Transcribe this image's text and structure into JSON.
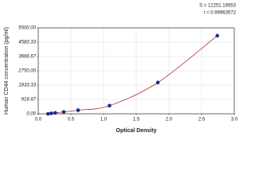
{
  "chart_data": {
    "type": "scatter",
    "ylabel": "Human CD44 concentration (pg/ml)",
    "xlabel": "Optical Density",
    "annotations": [
      "S = 12251.16553",
      "r = 0.99963572"
    ],
    "x": [
      0.15,
      0.2,
      0.26,
      0.39,
      0.61,
      1.09,
      1.83,
      2.74
    ],
    "series": [
      {
        "color": "#1f2a8c",
        "values": [
          0,
          30,
          60,
          120,
          230,
          520,
          2000,
          5000
        ]
      }
    ],
    "line_color": "#b03030",
    "xlim": [
      0,
      3
    ],
    "ylim": [
      0,
      5500
    ],
    "xticks": [
      {
        "value": 0,
        "label": "0.0"
      },
      {
        "value": 0.5,
        "label": "0.5"
      },
      {
        "value": 1,
        "label": "1.0"
      },
      {
        "value": 1.5,
        "label": "1.5"
      },
      {
        "value": 2,
        "label": "2.0"
      },
      {
        "value": 2.5,
        "label": "2.5"
      },
      {
        "value": 3,
        "label": "3.0"
      }
    ],
    "yticks": [
      {
        "value": 0,
        "label": "0.00"
      },
      {
        "value": 916.67,
        "label": "916.67"
      },
      {
        "value": 1833.33,
        "label": "1833.33"
      },
      {
        "value": 2750,
        "label": "2750.00"
      },
      {
        "value": 3666.67,
        "label": "3666.67"
      },
      {
        "value": 4583.33,
        "label": "4583.33"
      },
      {
        "value": 5500,
        "label": "5500.00"
      }
    ],
    "grid": true
  }
}
